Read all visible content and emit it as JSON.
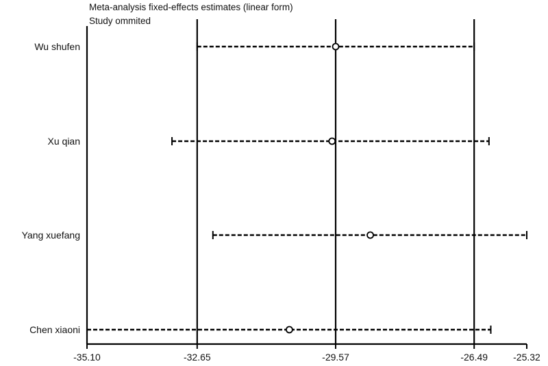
{
  "title": "Meta-analysis fixed-effects estimates (linear form)",
  "subtitle": "Study ommited",
  "chart_data": {
    "type": "forest",
    "title": "Meta-analysis fixed-effects estimates (linear form)",
    "subtitle": "Study ommited",
    "xlim": [
      -35.1,
      -25.32
    ],
    "xticks": [
      "-35.10",
      "-32.65",
      "-29.57",
      "-26.49",
      "-25.32"
    ],
    "xtick_values": [
      -35.1,
      -32.65,
      -29.57,
      -26.49,
      -25.32
    ],
    "reference_lines": [
      -32.65,
      -29.57,
      -26.49
    ],
    "studies": [
      {
        "label": "Wu shufen",
        "estimate": -29.57,
        "lower": -32.65,
        "upper": -26.49
      },
      {
        "label": "Xu qian",
        "estimate": -29.65,
        "lower": -33.21,
        "upper": -26.16
      },
      {
        "label": "Yang xuefang",
        "estimate": -28.8,
        "lower": -32.3,
        "upper": -25.32
      },
      {
        "label": "Chen xiaoni",
        "estimate": -30.6,
        "lower": -35.1,
        "upper": -26.12
      }
    ],
    "grid": false
  }
}
